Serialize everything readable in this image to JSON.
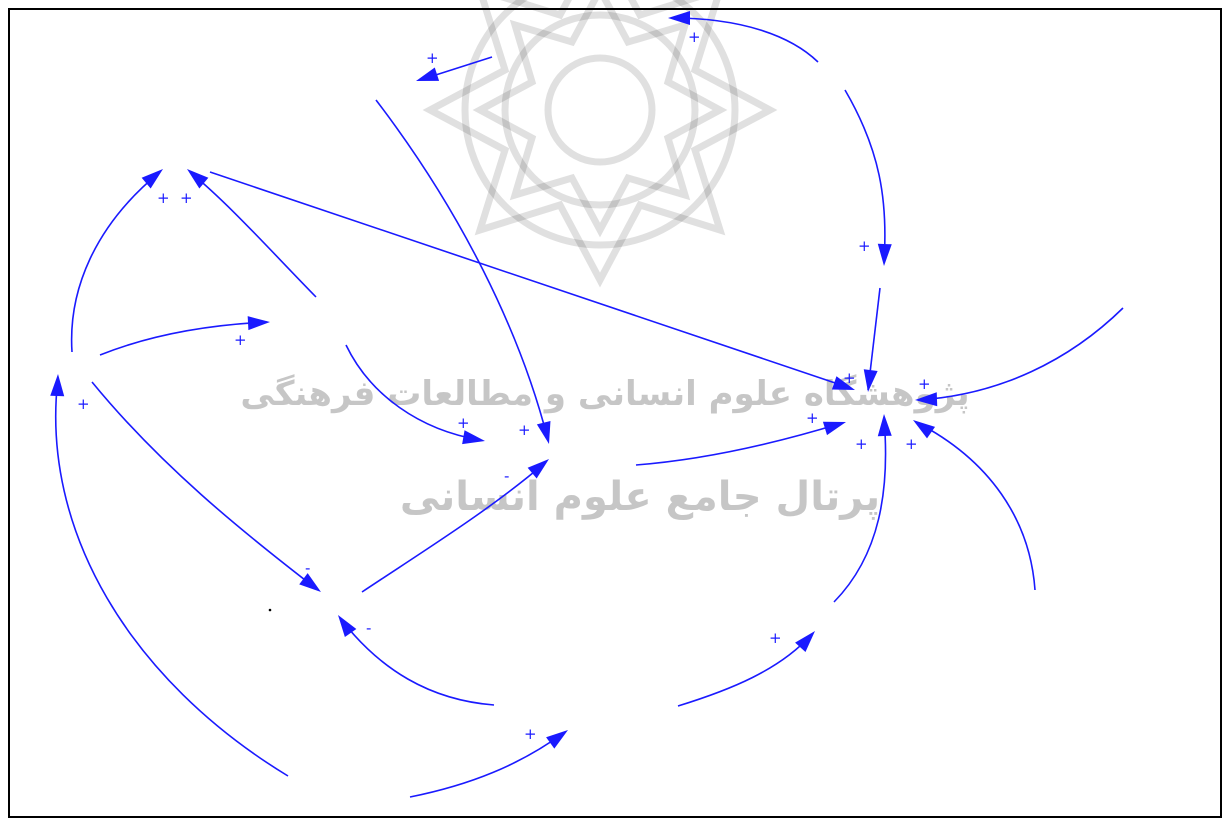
{
  "colors": {
    "link": "#1a1aff",
    "frame": "#000000",
    "watermark": "#b4b4b4"
  },
  "watermark": {
    "logo": "arabesque-star-logo",
    "line1": "پژوهشگاه علوم انسانی و مطالعات فرهنگی",
    "line2": "پرتال جامع علوم انسانی"
  },
  "diagram": {
    "type": "causal-loop-diagram",
    "links": [
      {
        "id": "l1",
        "polarity": "+"
      },
      {
        "id": "l2",
        "polarity": "+"
      },
      {
        "id": "l3",
        "polarity": "+"
      },
      {
        "id": "l4",
        "polarity": "+"
      },
      {
        "id": "l5",
        "polarity": "+"
      },
      {
        "id": "l6",
        "polarity": "+"
      },
      {
        "id": "l7",
        "polarity": "+"
      },
      {
        "id": "l8",
        "polarity": "+"
      },
      {
        "id": "l9",
        "polarity": "+"
      },
      {
        "id": "l10",
        "polarity": "+"
      },
      {
        "id": "l11",
        "polarity": "+"
      },
      {
        "id": "l12",
        "polarity": "+"
      },
      {
        "id": "l13",
        "polarity": "+"
      },
      {
        "id": "l14",
        "polarity": "+"
      },
      {
        "id": "l15",
        "polarity": "+"
      },
      {
        "id": "l16",
        "polarity": "+"
      },
      {
        "id": "l17",
        "polarity": "-"
      },
      {
        "id": "l18",
        "polarity": "-"
      },
      {
        "id": "l19",
        "polarity": "-"
      },
      {
        "id": "l20",
        "polarity": "+"
      },
      {
        "id": "l21",
        "polarity": "+"
      },
      {
        "id": "l22",
        "polarity": "+"
      },
      {
        "id": "l23",
        "polarity": "+"
      },
      {
        "id": "l24",
        "polarity": "+"
      }
    ]
  }
}
